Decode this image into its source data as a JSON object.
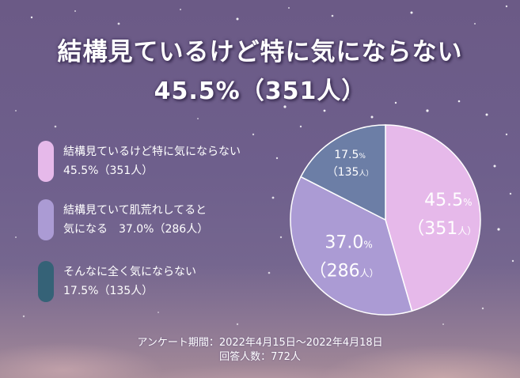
{
  "title": {
    "line1": "結構見ているけど特に気にならない",
    "line2": "45.5%（351人）"
  },
  "chart_data": {
    "type": "pie",
    "start_angle": "12 o'clock, clockwise",
    "slices": [
      {
        "label": "結構見ているけど特に気にならない",
        "legend_line2": "45.5%（351人）",
        "percent": 45.5,
        "count": 351,
        "color": "#e6b9ea",
        "pct_text": "45.5",
        "count_text": "（351",
        "unit": "人）"
      },
      {
        "label": "結構見ていて肌荒れしてると",
        "legend_line2": "気になる　37.0%（286人）",
        "percent": 37.0,
        "count": 286,
        "color": "#ab9bd4",
        "pct_text": "37.0",
        "count_text": "（286",
        "unit": "人）"
      },
      {
        "label": "そんなに全く気にならない",
        "legend_line2": "17.5%（135人）",
        "percent": 17.5,
        "count": 135,
        "color": "#6c7ea6",
        "pct_text": "17.5",
        "count_text": "（135",
        "unit": "人）"
      }
    ],
    "legend_swatch_colors": [
      "#e6b9ea",
      "#ab9bd4",
      "#356277"
    ]
  },
  "footer": {
    "period": "アンケート期間：2022年4月15日〜2022年4月18日",
    "respondents": "回答人数：772人"
  }
}
